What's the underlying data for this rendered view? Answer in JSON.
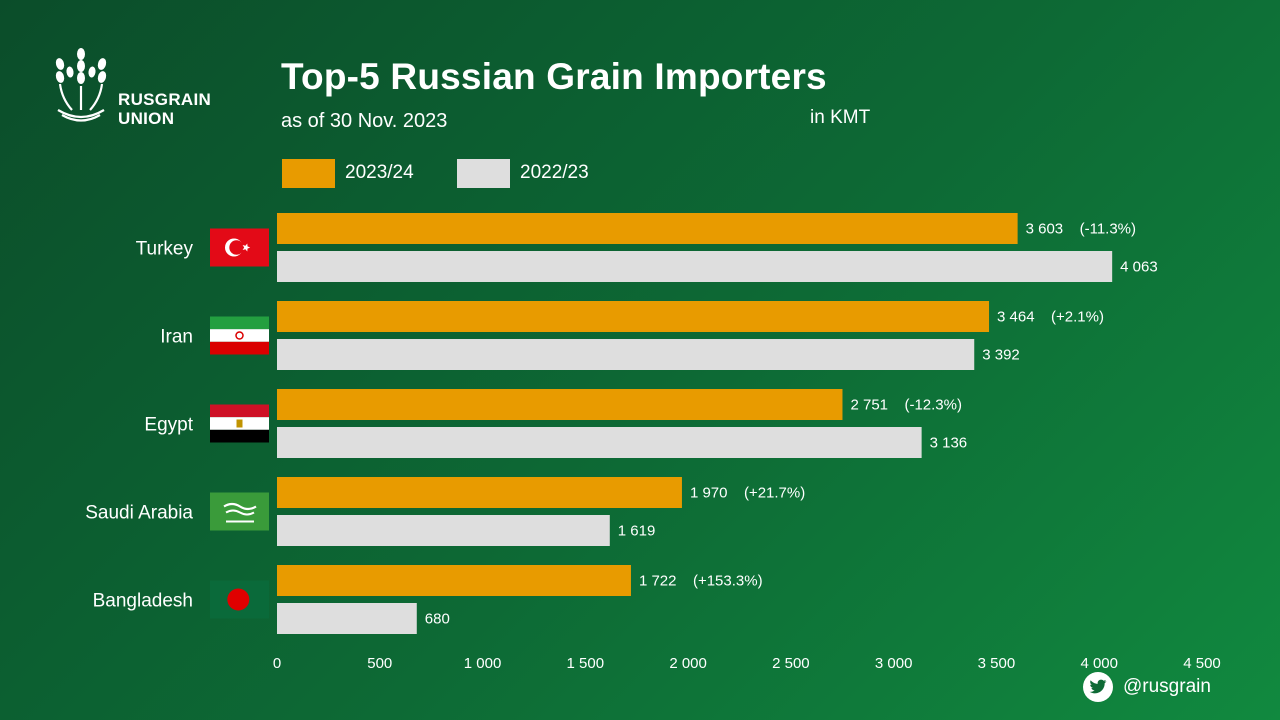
{
  "brand": {
    "name_line1": "RUSGRAIN",
    "name_line2": "UNION",
    "logo_icon": "wheat-icon"
  },
  "header": {
    "title": "Top-5 Russian Grain Importers",
    "subtitle": "as of 30 Nov. 2023",
    "unit": "in KMT"
  },
  "legend": {
    "items": [
      "2023/24",
      "2022/23"
    ]
  },
  "colors": {
    "current": "#e89b00",
    "previous": "#dedede",
    "background": "#0d6a35"
  },
  "footer": {
    "handle": "@rusgrain",
    "icon": "twitter-icon"
  },
  "chart_data": {
    "type": "bar",
    "orientation": "horizontal",
    "title": "Top-5 Russian Grain Importers",
    "subtitle": "as of 30 Nov. 2023",
    "unit": "in KMT",
    "categories": [
      "Turkey",
      "Iran",
      "Egypt",
      "Saudi Arabia",
      "Bangladesh"
    ],
    "flags": [
      "turkey-flag-icon",
      "iran-flag-icon",
      "egypt-flag-icon",
      "saudi-arabia-flag-icon",
      "bangladesh-flag-icon"
    ],
    "series": [
      {
        "name": "2023/24",
        "values": [
          3603,
          3464,
          2751,
          1970,
          1722
        ],
        "labels": [
          "3 603",
          "3 464",
          "2 751",
          "1 970",
          "1 722"
        ],
        "changes": [
          "(-11.3%)",
          "(+2.1%)",
          "(-12.3%)",
          "(+21.7%)",
          "(+153.3%)"
        ]
      },
      {
        "name": "2022/23",
        "values": [
          4063,
          3392,
          3136,
          1619,
          680
        ],
        "labels": [
          "4 063",
          "3 392",
          "3 136",
          "1 619",
          "680"
        ]
      }
    ],
    "xlim": [
      0,
      4500
    ],
    "xticks": [
      0,
      500,
      1000,
      1500,
      2000,
      2500,
      3000,
      3500,
      4000,
      4500
    ],
    "xtick_labels": [
      "0",
      "500",
      "1 000",
      "1 500",
      "2 000",
      "2 500",
      "3 000",
      "3 500",
      "4 000",
      "4 500"
    ],
    "grid": false,
    "legend_position": "top"
  }
}
